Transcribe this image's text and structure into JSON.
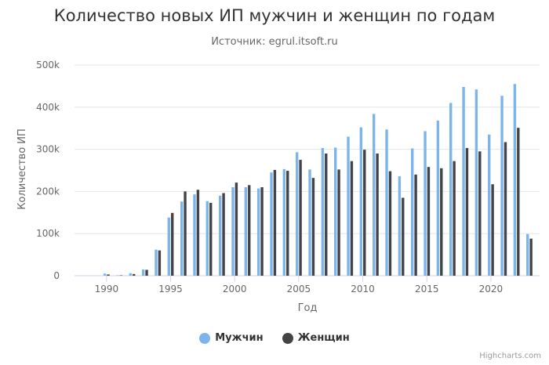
{
  "chart_data": {
    "type": "bar",
    "title": "Количество новых ИП мужчин и женщин по годам",
    "subtitle": "Источник: egrul.itsoft.ru",
    "xlabel": "Год",
    "ylabel": "Количество ИП",
    "x": [
      1990,
      1991,
      1992,
      1993,
      1994,
      1995,
      1996,
      1997,
      1998,
      1999,
      2000,
      2001,
      2002,
      2003,
      2004,
      2005,
      2006,
      2007,
      2008,
      2009,
      2010,
      2011,
      2012,
      2013,
      2014,
      2015,
      2016,
      2017,
      2018,
      2019,
      2020,
      2021,
      2022,
      2023
    ],
    "xlim": [
      1987.5,
      2023.8
    ],
    "x_ticks": [
      1990,
      1995,
      2000,
      2005,
      2010,
      2015,
      2020
    ],
    "y_ticks": [
      0,
      100000,
      200000,
      300000,
      400000,
      500000
    ],
    "y_tick_labels": [
      "0",
      "100k",
      "200k",
      "300k",
      "400k",
      "500k"
    ],
    "ylim": [
      0,
      500000
    ],
    "grid": true,
    "legend_position": "bottom",
    "series": [
      {
        "name": "Мужчин",
        "color": "#7cb5ec",
        "values": [
          5000,
          1000,
          6000,
          15000,
          62000,
          138000,
          176000,
          193000,
          177000,
          190000,
          210000,
          210000,
          207000,
          245000,
          253000,
          293000,
          252000,
          303000,
          304000,
          330000,
          352000,
          384000,
          347000,
          236000,
          302000,
          343000,
          368000,
          410000,
          448000,
          442000,
          335000,
          427000,
          455000,
          99000
        ]
      },
      {
        "name": "Женщин",
        "color": "#434348",
        "values": [
          3000,
          1000,
          4000,
          14000,
          60000,
          149000,
          200000,
          204000,
          173000,
          196000,
          221000,
          215000,
          210000,
          251000,
          249000,
          275000,
          232000,
          290000,
          252000,
          272000,
          299000,
          290000,
          248000,
          185000,
          240000,
          258000,
          255000,
          272000,
          303000,
          295000,
          217000,
          317000,
          351000,
          88000
        ]
      }
    ]
  },
  "credits": "Highcharts.com"
}
